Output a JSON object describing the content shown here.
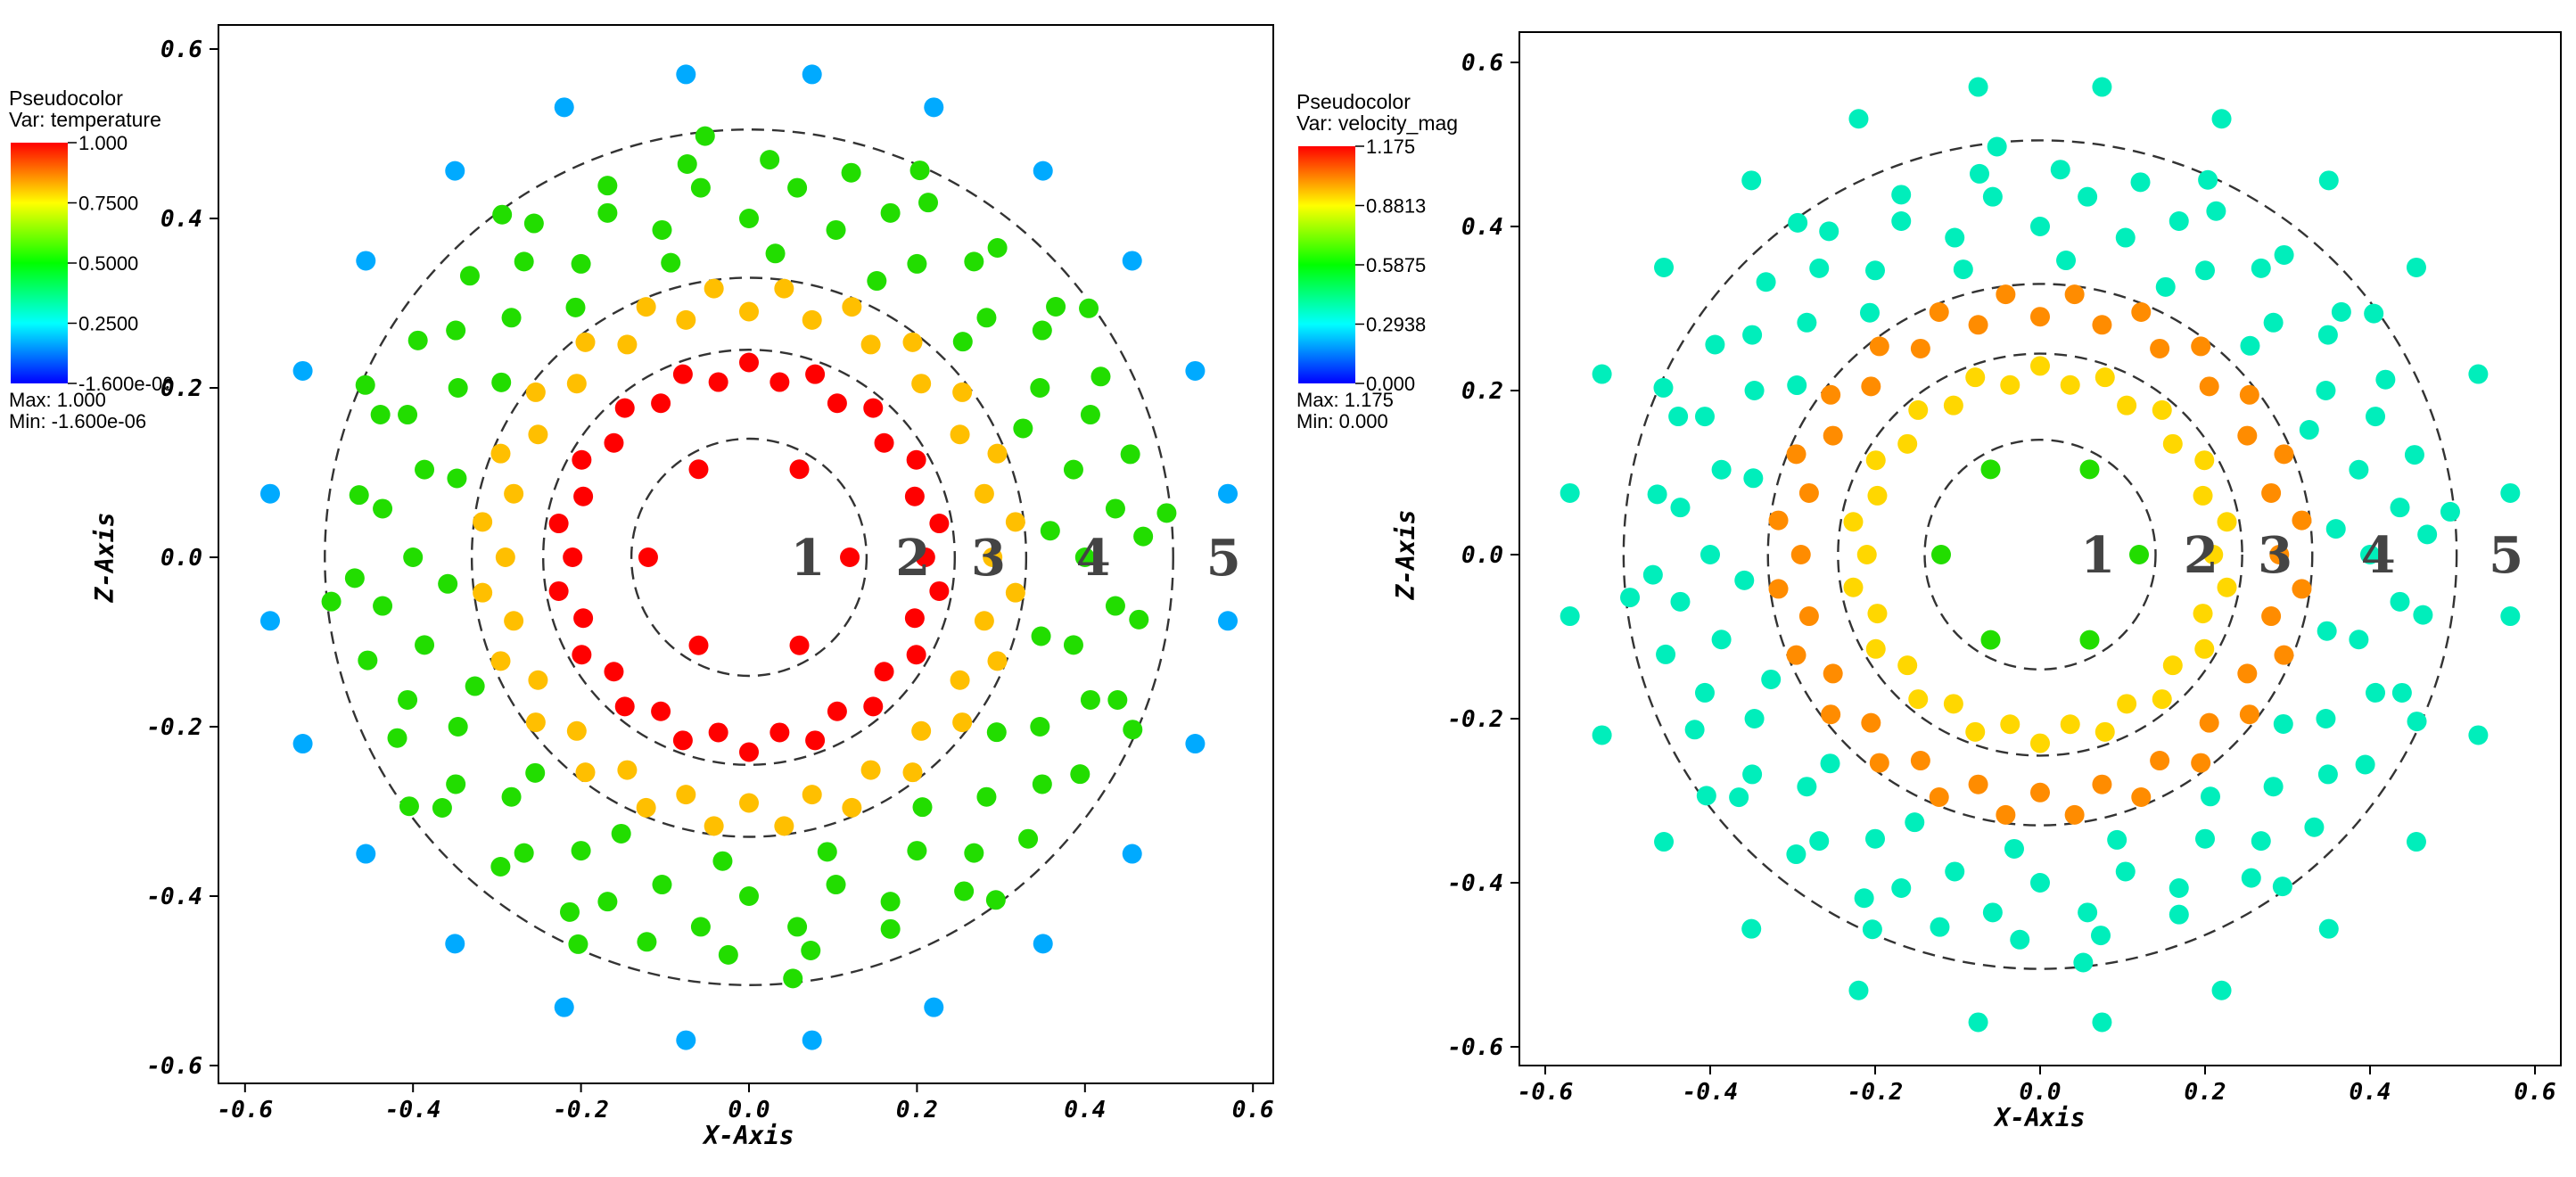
{
  "chart_data": [
    {
      "type": "scatter",
      "plot_kind": "pseudocolor",
      "xlabel": "X-Axis",
      "ylabel": "Z-Axis",
      "xlim": [
        -0.63,
        0.63
      ],
      "ylim": [
        -0.63,
        0.63
      ],
      "x_ticks": [
        "-0.6",
        "-0.4",
        "-0.2",
        "0.0",
        "0.2",
        "0.4",
        "0.6"
      ],
      "y_ticks": [
        "-0.6",
        "-0.4",
        "-0.2",
        "0.0",
        "0.2",
        "0.4",
        "0.6"
      ],
      "legend": {
        "title": "Pseudocolor",
        "var": "Var: temperature",
        "ticks": [
          "1.000",
          "0.7500",
          "0.5000",
          "0.2500",
          "-1.600e-06"
        ],
        "max": "Max:  1.000",
        "min": "Min:  -1.600e-06"
      },
      "colors": {
        "ring1": "#ff0000",
        "ring2": "#ff0000",
        "ring3": "#ffbf00",
        "ring4": "#22dd00",
        "ring5": "#00aaff"
      },
      "ring_labels": [
        "1",
        "2",
        "3",
        "4",
        "5"
      ],
      "ring_label_x": [
        0.07,
        0.195,
        0.285,
        0.41,
        0.565
      ],
      "dashed_circle_radii": [
        0.14,
        0.245,
        0.33,
        0.505
      ],
      "rings": [
        {
          "ring": 1,
          "count": 6,
          "radius": 0.12,
          "phase_deg": 0,
          "value": 1.0
        },
        {
          "ring": 2,
          "count": 18,
          "radius": 0.21,
          "phase_deg": 0,
          "value": 1.0
        },
        {
          "ring": 2,
          "count": 18,
          "radius": 0.23,
          "phase_deg": 10,
          "value": 1.0
        },
        {
          "ring": 3,
          "count": 24,
          "radius": 0.29,
          "phase_deg": 0,
          "value": 0.8
        },
        {
          "ring": 3,
          "count": 24,
          "radius": 0.32,
          "phase_deg": 7.5,
          "value": 0.8
        },
        {
          "ring": 4,
          "count": 18,
          "radius": 0.36,
          "phase_deg": 5,
          "value": 0.5
        },
        {
          "ring": 4,
          "count": 24,
          "radius": 0.4,
          "phase_deg": 0,
          "value": 0.5
        },
        {
          "ring": 4,
          "count": 24,
          "radius": 0.44,
          "phase_deg": 7.5,
          "value": 0.5
        },
        {
          "ring": 4,
          "count": 30,
          "radius": 0.47,
          "phase_deg": 3,
          "value": 0.5
        },
        {
          "ring": 4,
          "count": 12,
          "radius": 0.5,
          "phase_deg": 6,
          "value": 0.5
        },
        {
          "ring": 5,
          "count": 24,
          "radius": 0.575,
          "phase_deg": 7.5,
          "value": 0.2
        }
      ]
    },
    {
      "type": "scatter",
      "plot_kind": "pseudocolor",
      "xlabel": "X-Axis",
      "ylabel": "Z-Axis",
      "xlim": [
        -0.63,
        0.63
      ],
      "ylim": [
        -0.63,
        0.63
      ],
      "x_ticks": [
        "-0.6",
        "-0.4",
        "-0.2",
        "0.0",
        "0.2",
        "0.4",
        "0.6"
      ],
      "y_ticks": [
        "-0.6",
        "-0.4",
        "-0.2",
        "0.0",
        "0.2",
        "0.4",
        "0.6"
      ],
      "legend": {
        "title": "Pseudocolor",
        "var": "Var: velocity_mag",
        "ticks": [
          "1.175",
          "0.8813",
          "0.5875",
          "0.2938",
          "0.000"
        ],
        "max": "Max:  1.175",
        "min": "Min:  0.000"
      },
      "colors": {
        "ring1": "#22dd00",
        "ring2": "#ffd700",
        "ring3": "#ff8c00",
        "ring4": "#00eebb",
        "ring5": "#00eebb"
      },
      "ring_labels": [
        "1",
        "2",
        "3",
        "4",
        "5"
      ],
      "ring_label_x": [
        0.07,
        0.195,
        0.285,
        0.41,
        0.565
      ],
      "dashed_circle_radii": [
        0.14,
        0.245,
        0.33,
        0.505
      ],
      "rings": [
        {
          "ring": 1,
          "count": 6,
          "radius": 0.12,
          "phase_deg": 0,
          "value": 0.55
        },
        {
          "ring": 2,
          "count": 18,
          "radius": 0.21,
          "phase_deg": 0,
          "value": 0.85
        },
        {
          "ring": 2,
          "count": 18,
          "radius": 0.23,
          "phase_deg": 10,
          "value": 0.85
        },
        {
          "ring": 3,
          "count": 24,
          "radius": 0.29,
          "phase_deg": 0,
          "value": 1.0
        },
        {
          "ring": 3,
          "count": 24,
          "radius": 0.32,
          "phase_deg": 7.5,
          "value": 1.0
        },
        {
          "ring": 4,
          "count": 18,
          "radius": 0.36,
          "phase_deg": 5,
          "value": 0.4
        },
        {
          "ring": 4,
          "count": 24,
          "radius": 0.4,
          "phase_deg": 0,
          "value": 0.4
        },
        {
          "ring": 4,
          "count": 24,
          "radius": 0.44,
          "phase_deg": 7.5,
          "value": 0.4
        },
        {
          "ring": 4,
          "count": 30,
          "radius": 0.47,
          "phase_deg": 3,
          "value": 0.4
        },
        {
          "ring": 4,
          "count": 12,
          "radius": 0.5,
          "phase_deg": 6,
          "value": 0.4
        },
        {
          "ring": 5,
          "count": 24,
          "radius": 0.575,
          "phase_deg": 7.5,
          "value": 0.4
        }
      ]
    }
  ]
}
